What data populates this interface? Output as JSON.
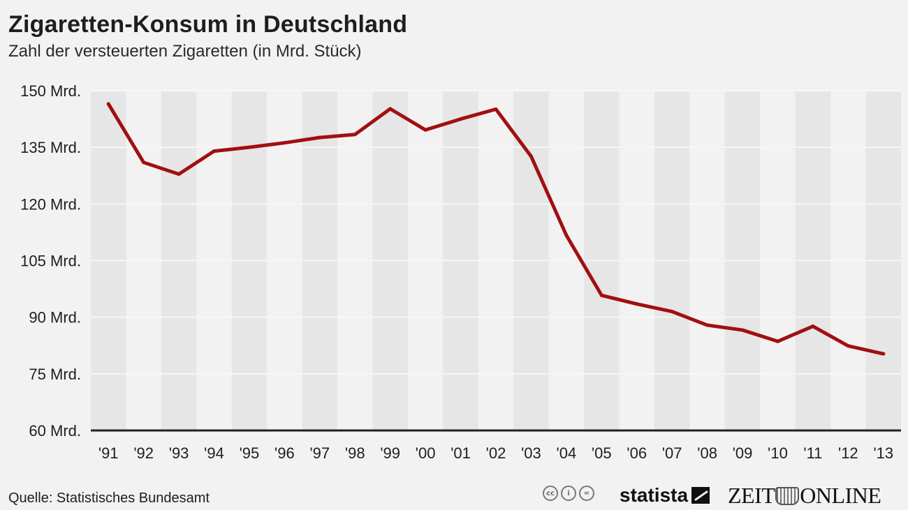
{
  "header": {
    "title": "Zigaretten-Konsum in Deutschland",
    "subtitle": "Zahl der versteuerten Zigaretten (in Mrd. Stück)"
  },
  "footer": {
    "source": "Quelle: Statistisches Bundesamt",
    "statista_logo": "statista",
    "zeit_logo_left": "ZEIT",
    "zeit_logo_right": "ONLINE",
    "cc_icons": [
      "cc-icon",
      "by-icon",
      "nd-icon"
    ]
  },
  "colors": {
    "line": "#a10f12",
    "band": "#e6e6e6",
    "background": "#f2f2f2",
    "axis": "#222222"
  },
  "chart_data": {
    "type": "line",
    "title": "Zigaretten-Konsum in Deutschland",
    "subtitle": "Zahl der versteuerten Zigaretten (in Mrd. Stück)",
    "categories": [
      "'91",
      "'92",
      "'93",
      "'94",
      "'95",
      "'96",
      "'97",
      "'98",
      "'99",
      "'00",
      "'01",
      "'02",
      "'03",
      "'04",
      "'05",
      "'06",
      "'07",
      "'08",
      "'09",
      "'10",
      "'11",
      "'12",
      "'13"
    ],
    "series": [
      {
        "values": [
          146.5,
          131.0,
          127.9,
          134.0,
          135.0,
          136.2,
          137.6,
          138.4,
          145.2,
          139.6,
          142.5,
          145.1,
          132.6,
          111.7,
          95.8,
          93.5,
          91.5,
          87.9,
          86.6,
          83.6,
          87.6,
          82.4,
          80.3
        ]
      }
    ],
    "yticks": [
      60,
      75,
      90,
      105,
      120,
      135,
      150
    ],
    "ytick_labels": [
      "60 Mrd.",
      "75 Mrd.",
      "90 Mrd.",
      "105 Mrd.",
      "120 Mrd.",
      "135 Mrd.",
      "150 Mrd."
    ],
    "ylim": [
      60,
      150
    ],
    "grid": true,
    "legend": "none"
  }
}
